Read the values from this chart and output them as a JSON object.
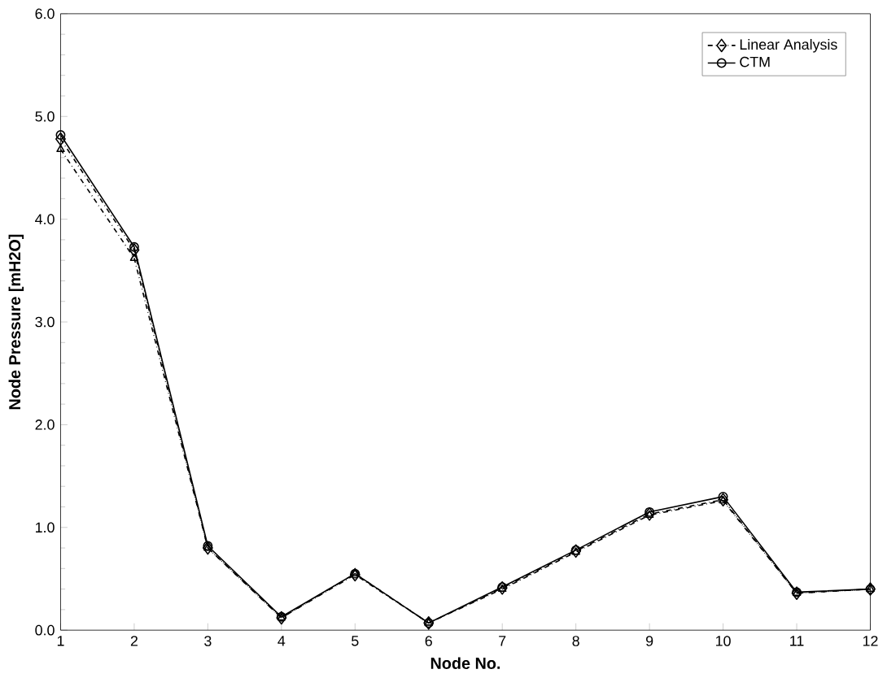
{
  "chart_data": {
    "type": "line",
    "xlabel": "Node No.",
    "ylabel": "Node Pressure  [mH2O]",
    "x": [
      1,
      2,
      3,
      4,
      5,
      6,
      7,
      8,
      9,
      10,
      11,
      12
    ],
    "xlim": [
      1,
      12
    ],
    "xticks": [
      1,
      2,
      3,
      4,
      5,
      6,
      7,
      8,
      9,
      10,
      11,
      12
    ],
    "ylim": [
      0,
      6
    ],
    "yticks": [
      {
        "value": 0,
        "label": "0.0"
      },
      {
        "value": 1,
        "label": "1.0"
      },
      {
        "value": 2,
        "label": "2.0"
      },
      {
        "value": 3,
        "label": "3.0"
      },
      {
        "value": 4,
        "label": "4.0"
      },
      {
        "value": 5,
        "label": "5.0"
      },
      {
        "value": 6,
        "label": "6.0"
      }
    ],
    "legend": "top right",
    "grid": false,
    "series": [
      {
        "name": "Linear Analysis",
        "color": "#000000",
        "marker": "diamond",
        "line_style": "dashed",
        "values": [
          4.78,
          3.7,
          0.8,
          0.12,
          0.54,
          0.07,
          0.41,
          0.77,
          1.13,
          1.27,
          0.36,
          0.4
        ]
      },
      {
        "name": "CTM",
        "color": "#000000",
        "marker": "circle",
        "line_style": "solid",
        "values": [
          4.82,
          3.73,
          0.82,
          0.13,
          0.55,
          0.07,
          0.42,
          0.78,
          1.15,
          1.3,
          0.37,
          0.4
        ]
      },
      {
        "color": "#000000",
        "marker": "triangle",
        "line_style": "dashed",
        "values": [
          4.68,
          3.62,
          0.8,
          0.12,
          0.55,
          0.07,
          0.4,
          0.76,
          1.12,
          1.26,
          0.36,
          0.4
        ]
      }
    ]
  }
}
